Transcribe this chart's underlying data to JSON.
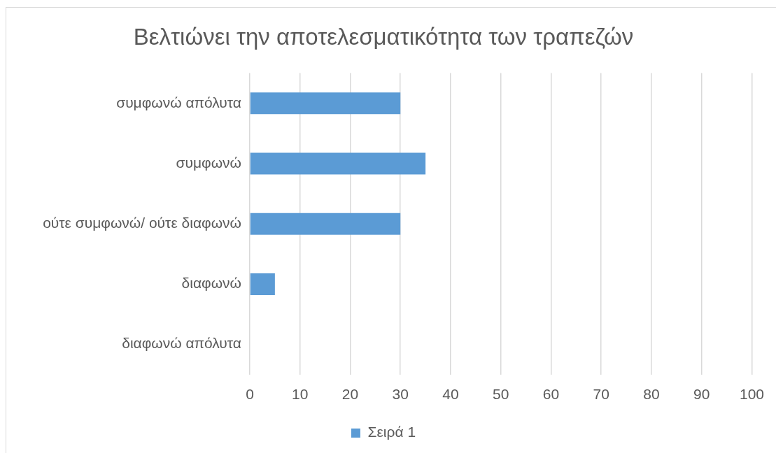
{
  "chart_data": {
    "type": "bar",
    "title": "Βελτιώνει την αποτελεσματικότητα των τραπεζών",
    "orientation": "horizontal",
    "categories": [
      "συμφωνώ απόλυτα",
      "συμφωνώ",
      "ούτε συμφωνώ/ ούτε διαφωνώ",
      "διαφωνώ",
      "διαφωνώ απόλυτα"
    ],
    "series": [
      {
        "name": "Σειρά 1",
        "color": "#5b9bd5",
        "values": [
          30,
          35,
          30,
          5,
          0
        ]
      }
    ],
    "xlim": [
      0,
      100
    ],
    "xticks": [
      0,
      10,
      20,
      30,
      40,
      50,
      60,
      70,
      80,
      90,
      100
    ],
    "grid": "x",
    "legend": "bottom"
  }
}
